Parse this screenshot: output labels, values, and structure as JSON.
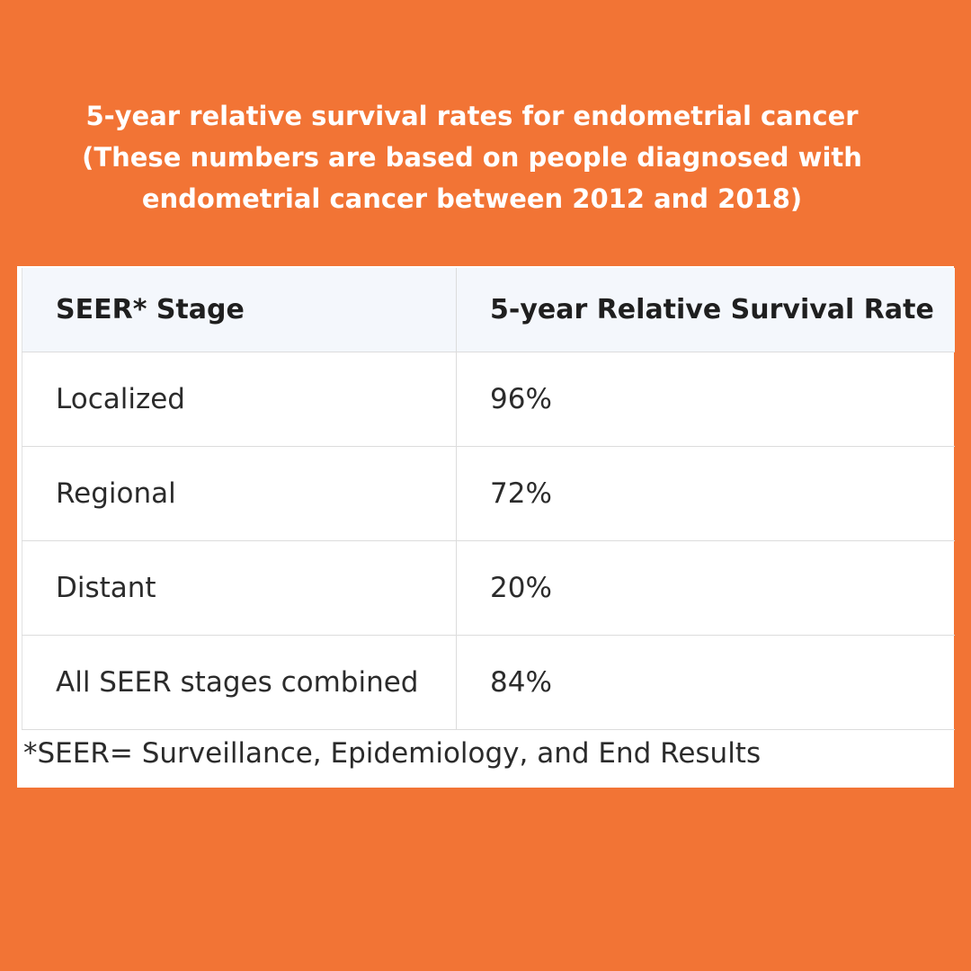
{
  "heading": {
    "line1": "5-year relative survival rates for endometrial cancer",
    "line2": "(These numbers are based on people diagnosed with",
    "line3": "endometrial cancer between 2012 and 2018)"
  },
  "table": {
    "headers": [
      "SEER* Stage",
      "5-year Relative Survival Rate"
    ],
    "rows": [
      [
        "Localized",
        "96%"
      ],
      [
        "Regional",
        "72%"
      ],
      [
        "Distant",
        "20%"
      ],
      [
        "All SEER stages combined",
        "84%"
      ]
    ]
  },
  "footnote": "*SEER= Surveillance, Epidemiology, and End Results",
  "colors": {
    "background": "#f27435",
    "header_row": "#f4f7fc",
    "text": "#2b2b2b"
  }
}
